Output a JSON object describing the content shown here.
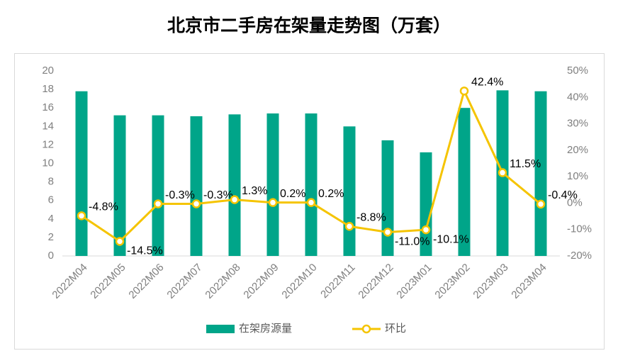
{
  "chart_data": {
    "type": "bar_line",
    "title": "北京市二手房在架量走势图（万套）",
    "categories": [
      "2022M04",
      "2022M05",
      "2022M06",
      "2022M07",
      "2022M08",
      "2022M09",
      "2022M10",
      "2022M11",
      "2022M12",
      "2023M01",
      "2023M02",
      "2023M03",
      "2023M04"
    ],
    "series": [
      {
        "name": "在架房源量",
        "type": "bar",
        "color": "#00a589",
        "values": [
          17.8,
          15.2,
          15.2,
          15.1,
          15.3,
          15.4,
          15.4,
          14.0,
          12.5,
          11.2,
          16.0,
          17.9,
          17.8
        ]
      },
      {
        "name": "环比",
        "type": "line",
        "axis": "y2",
        "color": "#f5c400",
        "values": [
          -4.8,
          -14.5,
          -0.3,
          -0.3,
          1.3,
          0.2,
          0.2,
          -8.8,
          -11.0,
          -10.1,
          42.4,
          11.5,
          -0.4
        ],
        "value_labels": [
          "-4.8%",
          "-14.5%",
          "-0.3%",
          "-0.3%",
          "1.3%",
          "0.2%",
          "0.2%",
          "-8.8%",
          "-11.0%",
          "-10.1%",
          "42.4%",
          "11.5%",
          "-0.4%"
        ]
      }
    ],
    "ylim": [
      0,
      20
    ],
    "yticks": [
      0,
      2,
      4,
      6,
      8,
      10,
      12,
      14,
      16,
      18,
      20
    ],
    "y2lim": [
      -20,
      50
    ],
    "y2ticks": [
      {
        "value": -20,
        "label": "-20%"
      },
      {
        "value": -10,
        "label": "-10%"
      },
      {
        "value": 0,
        "label": "0%"
      },
      {
        "value": 10,
        "label": "10%"
      },
      {
        "value": 20,
        "label": "20%"
      },
      {
        "value": 30,
        "label": "30%"
      },
      {
        "value": 40,
        "label": "40%"
      },
      {
        "value": 50,
        "label": "50%"
      }
    ],
    "legend": "bottom"
  }
}
